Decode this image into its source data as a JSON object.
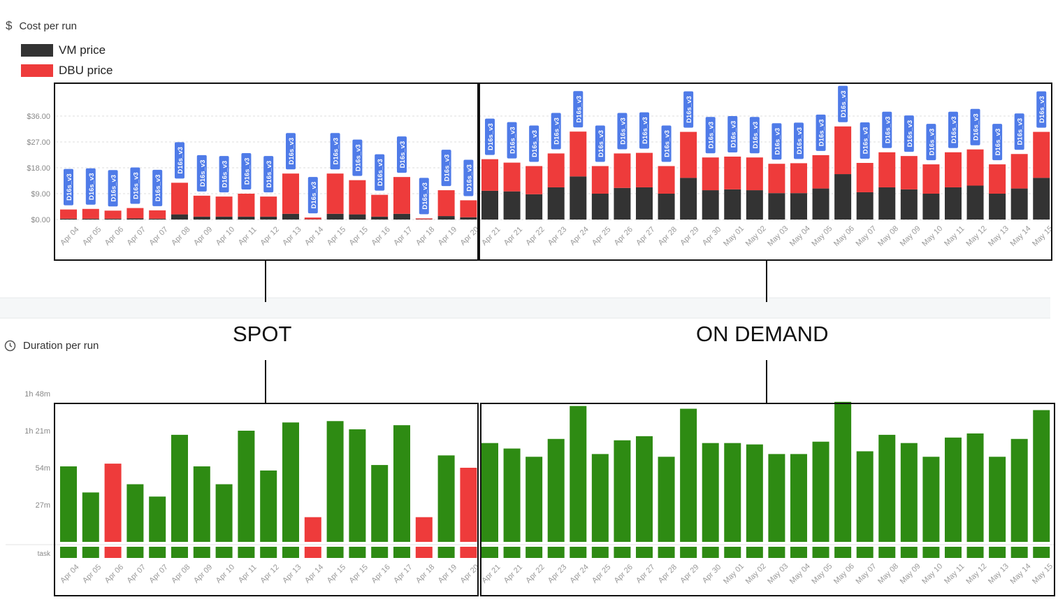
{
  "cost_section": {
    "icon": "dollar-icon",
    "icon_glyph": "$",
    "title": "Cost per run"
  },
  "duration_section": {
    "icon": "clock-icon",
    "title": "Duration per run"
  },
  "legend": [
    {
      "label": "VM price",
      "color": "#333333"
    },
    {
      "label": "DBU price",
      "color": "#ee3b3b"
    }
  ],
  "annotations": {
    "spot": "SPOT",
    "on_demand": "ON DEMAND"
  },
  "colors": {
    "vm": "#333333",
    "dbu": "#ee3b3b",
    "success": "#2e8b13",
    "failed": "#ee3b3b",
    "tag_bg": "#4f7be8"
  },
  "chart_data": [
    {
      "type": "bar",
      "stacked": true,
      "title": "Cost per run",
      "yticks": [
        "$0.00",
        "$9.00",
        "$18.00",
        "$27.00",
        "$36.00"
      ],
      "ylim": [
        0,
        36
      ],
      "categories": [
        "Apr 04",
        "Apr 05",
        "Apr 06",
        "Apr 07",
        "Apr 07",
        "Apr 08",
        "Apr 09",
        "Apr 10",
        "Apr 11",
        "Apr 12",
        "Apr 13",
        "Apr 14",
        "Apr 15",
        "Apr 15",
        "Apr 16",
        "Apr 17",
        "Apr 18",
        "Apr 19",
        "Apr 20",
        "Apr 21",
        "Apr 21",
        "Apr 22",
        "Apr 23",
        "Apr 24",
        "Apr 25",
        "Apr 26",
        "Apr 27",
        "Apr 28",
        "Apr 29",
        "Apr 30",
        "May 01",
        "May 02",
        "May 03",
        "May 04",
        "May 05",
        "May 06",
        "May 07",
        "May 08",
        "May 09",
        "May 10",
        "May 11",
        "May 12",
        "May 13",
        "May 14",
        "May 15"
      ],
      "tag": "D16s_v3",
      "series": [
        {
          "name": "VM price",
          "values": [
            0.3,
            0.3,
            0.3,
            0.4,
            0.3,
            1.8,
            1.0,
            1.0,
            1.0,
            1.0,
            2.0,
            0.1,
            2.0,
            1.8,
            1.0,
            2.0,
            0.1,
            1.2,
            0.8,
            10.0,
            9.8,
            8.8,
            11.2,
            15.0,
            9.0,
            11.0,
            11.2,
            9.0,
            14.5,
            10.2,
            10.5,
            10.2,
            9.2,
            9.2,
            10.8,
            15.8,
            9.5,
            11.2,
            10.5,
            9.0,
            11.2,
            11.8,
            9.0,
            10.8,
            14.5
          ]
        },
        {
          "name": "DBU price",
          "values": [
            3.2,
            3.4,
            2.8,
            3.6,
            2.9,
            11.0,
            7.3,
            7.0,
            8.0,
            7.0,
            14.0,
            0.6,
            14.0,
            11.9,
            7.6,
            12.8,
            0.3,
            9.0,
            5.9,
            11.0,
            10.0,
            9.8,
            11.8,
            15.6,
            9.6,
            12.0,
            12.0,
            9.6,
            16.0,
            11.4,
            11.4,
            11.4,
            10.2,
            10.4,
            11.6,
            16.6,
            10.2,
            12.2,
            11.6,
            10.2,
            12.2,
            12.6,
            10.2,
            12.0,
            16.0
          ]
        }
      ]
    },
    {
      "type": "bar",
      "title": "Duration per run",
      "yticks": [
        "1h 48m",
        "1h 21m",
        "54m",
        "27m"
      ],
      "yunit": "minutes",
      "ylim": [
        0,
        108
      ],
      "row_label": "task",
      "categories": [
        "Apr 04",
        "Apr 05",
        "Apr 06",
        "Apr 07",
        "Apr 07",
        "Apr 08",
        "Apr 09",
        "Apr 10",
        "Apr 11",
        "Apr 12",
        "Apr 13",
        "Apr 14",
        "Apr 15",
        "Apr 15",
        "Apr 16",
        "Apr 17",
        "Apr 18",
        "Apr 19",
        "Apr 20",
        "Apr 21",
        "Apr 21",
        "Apr 22",
        "Apr 23",
        "Apr 24",
        "Apr 25",
        "Apr 26",
        "Apr 27",
        "Apr 28",
        "Apr 29",
        "Apr 30",
        "May 01",
        "May 02",
        "May 03",
        "May 04",
        "May 05",
        "May 06",
        "May 07",
        "May 08",
        "May 09",
        "May 10",
        "May 11",
        "May 12",
        "May 13",
        "May 14",
        "May 15"
      ],
      "values": [
        55,
        36,
        57,
        42,
        33,
        78,
        55,
        42,
        81,
        52,
        87,
        18,
        88,
        82,
        56,
        85,
        18,
        63,
        54,
        72,
        68,
        62,
        75,
        99,
        64,
        74,
        77,
        62,
        97,
        72,
        72,
        71,
        64,
        64,
        73,
        102,
        66,
        78,
        72,
        62,
        76,
        79,
        62,
        75,
        96
      ],
      "status": [
        "success",
        "success",
        "failed",
        "success",
        "success",
        "success",
        "success",
        "success",
        "success",
        "success",
        "success",
        "failed",
        "success",
        "success",
        "success",
        "success",
        "failed",
        "success",
        "failed",
        "success",
        "success",
        "success",
        "success",
        "success",
        "success",
        "success",
        "success",
        "success",
        "success",
        "success",
        "success",
        "success",
        "success",
        "success",
        "success",
        "success",
        "success",
        "success",
        "success",
        "success",
        "success",
        "success",
        "success",
        "success",
        "success"
      ]
    }
  ]
}
